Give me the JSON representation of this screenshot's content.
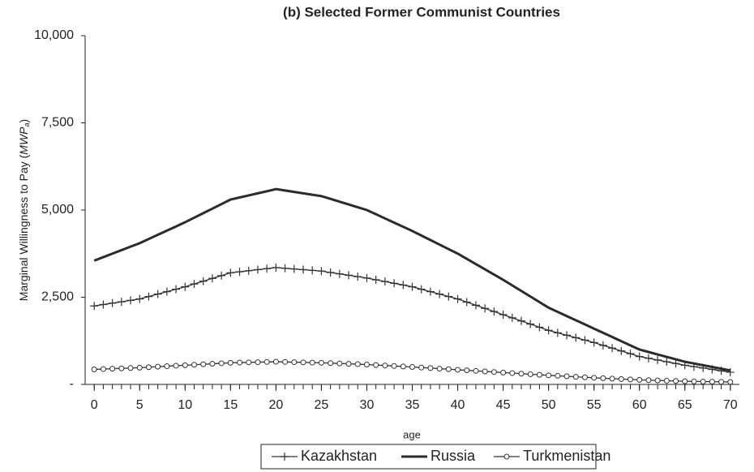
{
  "chart_data": {
    "type": "line",
    "title": "(b) Selected Former Communist Countries",
    "y_label": {
      "text": "Marginal Willingness to Pay (",
      "symbol": "MWP",
      "subscript": "a",
      "close": ")"
    },
    "x_label": "age",
    "x": [
      0,
      1,
      2,
      3,
      4,
      5,
      6,
      7,
      8,
      9,
      10,
      11,
      12,
      13,
      14,
      15,
      16,
      17,
      18,
      19,
      20,
      21,
      22,
      23,
      24,
      25,
      26,
      27,
      28,
      29,
      30,
      31,
      32,
      33,
      34,
      35,
      36,
      37,
      38,
      39,
      40,
      41,
      42,
      43,
      44,
      45,
      46,
      47,
      48,
      49,
      50,
      51,
      52,
      53,
      54,
      55,
      56,
      57,
      58,
      59,
      60,
      61,
      62,
      63,
      64,
      65,
      66,
      67,
      68,
      69,
      70
    ],
    "series": [
      {
        "name": "Kazakhstan",
        "color": "#333333",
        "marker": "plus",
        "values": [
          2250,
          2290,
          2330,
          2370,
          2410,
          2450,
          2520,
          2590,
          2660,
          2730,
          2800,
          2880,
          2960,
          3040,
          3120,
          3200,
          3230,
          3260,
          3290,
          3320,
          3350,
          3330,
          3310,
          3290,
          3270,
          3250,
          3210,
          3170,
          3130,
          3090,
          3050,
          3000,
          2950,
          2900,
          2850,
          2800,
          2730,
          2660,
          2590,
          2520,
          2450,
          2360,
          2270,
          2180,
          2090,
          2000,
          1910,
          1820,
          1730,
          1640,
          1550,
          1480,
          1410,
          1340,
          1270,
          1200,
          1120,
          1040,
          960,
          880,
          800,
          750,
          700,
          650,
          600,
          550,
          510,
          470,
          430,
          390,
          350
        ]
      },
      {
        "name": "Russia",
        "color": "#2b2b2b",
        "marker": "none",
        "values": [
          3550,
          3650,
          3750,
          3850,
          3950,
          4050,
          4170,
          4290,
          4410,
          4530,
          4650,
          4780,
          4910,
          5040,
          5170,
          5300,
          5360,
          5420,
          5480,
          5540,
          5600,
          5560,
          5520,
          5480,
          5440,
          5400,
          5320,
          5240,
          5160,
          5080,
          5000,
          4880,
          4760,
          4640,
          4520,
          4400,
          4270,
          4140,
          4010,
          3880,
          3750,
          3600,
          3450,
          3300,
          3150,
          3000,
          2840,
          2680,
          2520,
          2360,
          2200,
          2080,
          1960,
          1840,
          1720,
          1600,
          1480,
          1360,
          1240,
          1120,
          1000,
          930,
          860,
          790,
          720,
          650,
          600,
          550,
          500,
          450,
          400
        ]
      },
      {
        "name": "Turkmenistan",
        "color": "#333333",
        "marker": "circle",
        "values": [
          430,
          440,
          450,
          460,
          470,
          480,
          494,
          508,
          522,
          536,
          550,
          564,
          578,
          592,
          606,
          620,
          626,
          632,
          638,
          644,
          650,
          644,
          638,
          632,
          626,
          620,
          610,
          600,
          590,
          580,
          570,
          556,
          542,
          528,
          514,
          500,
          484,
          468,
          452,
          436,
          420,
          404,
          388,
          372,
          356,
          340,
          324,
          308,
          292,
          276,
          260,
          246,
          232,
          218,
          204,
          190,
          178,
          166,
          154,
          142,
          130,
          122,
          114,
          106,
          98,
          90,
          86,
          82,
          78,
          74,
          70
        ]
      }
    ],
    "xlim": [
      -1,
      71
    ],
    "xticks": [
      0,
      5,
      10,
      15,
      20,
      25,
      30,
      35,
      40,
      45,
      50,
      55,
      60,
      65,
      70
    ],
    "ylim": [
      0,
      10000
    ],
    "yticks": [
      {
        "value": 0,
        "label": "-"
      },
      {
        "value": 2500,
        "label": "2,500"
      },
      {
        "value": 5000,
        "label": "5,000"
      },
      {
        "value": 7500,
        "label": "7,500"
      },
      {
        "value": 10000,
        "label": "10,000"
      }
    ],
    "legend": "bottom"
  }
}
